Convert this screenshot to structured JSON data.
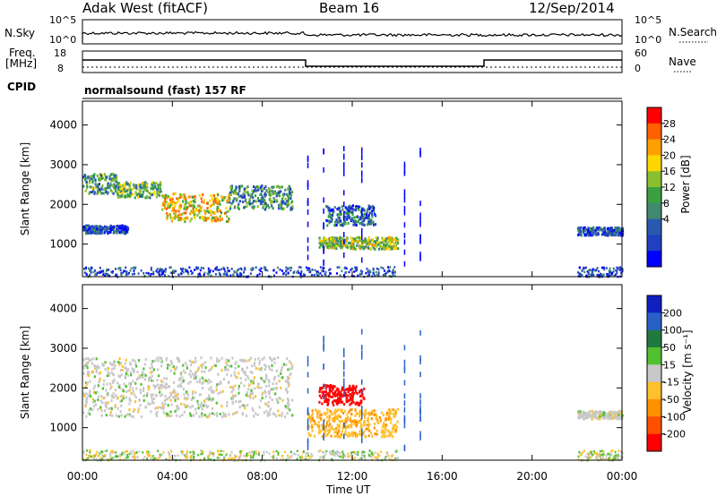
{
  "header": {
    "station": "Adak West (fitACF)",
    "beam": "Beam 16",
    "date": "12/Sep/2014"
  },
  "strip_labels": {
    "nsky": "N.Sky",
    "nsky_ticks": [
      "10^5",
      "10^0"
    ],
    "nsearch": "N.Search",
    "nsearch_ticks": [
      "10^5",
      "10^0"
    ],
    "freq": "Freq.",
    "freq_unit": "[MHz]",
    "freq_ticks": [
      "18",
      "8"
    ],
    "nave": "Nave",
    "nave_ticks": [
      "60",
      "0"
    ],
    "cpid": "CPID",
    "cpid_value": "normalsound (fast) 157 RF"
  },
  "chart_data": [
    {
      "type": "heatmap",
      "name": "power",
      "xlabel": "Time UT",
      "ylabel": "Slant Range [km]",
      "xlim": [
        "00:00",
        "24:00"
      ],
      "x_ticks": [
        "00:00",
        "04:00",
        "08:00",
        "12:00",
        "16:00",
        "20:00",
        "00:00"
      ],
      "ylim": [
        180,
        4600
      ],
      "y_ticks": [
        1000,
        2000,
        3000,
        4000
      ],
      "colorbar": {
        "label": "Power [dB]",
        "ticks": [
          "28",
          "24",
          "20",
          "16",
          "12",
          "8",
          "4"
        ],
        "range": [
          0,
          30
        ],
        "colors": [
          "#0000ff",
          "#2040c0",
          "#2a5ab0",
          "#408a70",
          "#3aa040",
          "#8ac030",
          "#ffd700",
          "#ffa000",
          "#ff6000",
          "#ff0000"
        ]
      },
      "echo_regions": [
        {
          "t_start": 0.0,
          "t_end": 1.5,
          "range_km": [
            2300,
            2800
          ],
          "value": 12
        },
        {
          "t_start": 1.5,
          "t_end": 3.5,
          "range_km": [
            2200,
            2600
          ],
          "value": 14
        },
        {
          "t_start": 3.5,
          "t_end": 6.5,
          "range_km": [
            1600,
            2300
          ],
          "value": 20
        },
        {
          "t_start": 6.5,
          "t_end": 9.3,
          "range_km": [
            1900,
            2500
          ],
          "value": 10
        },
        {
          "t_start": 0.0,
          "t_end": 2.0,
          "range_km": [
            1300,
            1500
          ],
          "value": 6
        },
        {
          "t_start": 10.5,
          "t_end": 14.0,
          "range_km": [
            900,
            1200
          ],
          "value": 16
        },
        {
          "t_start": 10.8,
          "t_end": 13.0,
          "range_km": [
            1500,
            2000
          ],
          "value": 8
        },
        {
          "t_start": 22.0,
          "t_end": 24.0,
          "range_km": [
            1250,
            1450
          ],
          "value": 6
        }
      ]
    },
    {
      "type": "heatmap",
      "name": "velocity",
      "xlabel": "Time UT",
      "ylabel": "Slant Range [km]",
      "xlim": [
        "00:00",
        "24:00"
      ],
      "x_ticks": [
        "00:00",
        "04:00",
        "08:00",
        "12:00",
        "16:00",
        "20:00",
        "00:00"
      ],
      "ylim": [
        180,
        4600
      ],
      "y_ticks": [
        1000,
        2000,
        3000,
        4000
      ],
      "colorbar": {
        "label": "Velocity [m s⁻¹]",
        "ticks": [
          "200",
          "100",
          "50",
          "15",
          "-15",
          "-50",
          "-100",
          "-200"
        ],
        "colors": [
          "#1020c0",
          "#2860c8",
          "#207a40",
          "#50c030",
          "#c8c8c8",
          "#ffc030",
          "#ff9000",
          "#ff5000",
          "#ff0000"
        ]
      },
      "echo_regions": [
        {
          "t_start": 0.0,
          "t_end": 9.3,
          "range_km": [
            1300,
            2800
          ],
          "value": 0
        },
        {
          "t_start": 10.5,
          "t_end": 12.5,
          "range_km": [
            1600,
            2100
          ],
          "value": -220
        },
        {
          "t_start": 10.0,
          "t_end": 14.0,
          "range_km": [
            800,
            1500
          ],
          "value": -40
        },
        {
          "t_start": 22.0,
          "t_end": 24.0,
          "range_km": [
            1250,
            1450
          ],
          "value": 0
        }
      ]
    }
  ]
}
